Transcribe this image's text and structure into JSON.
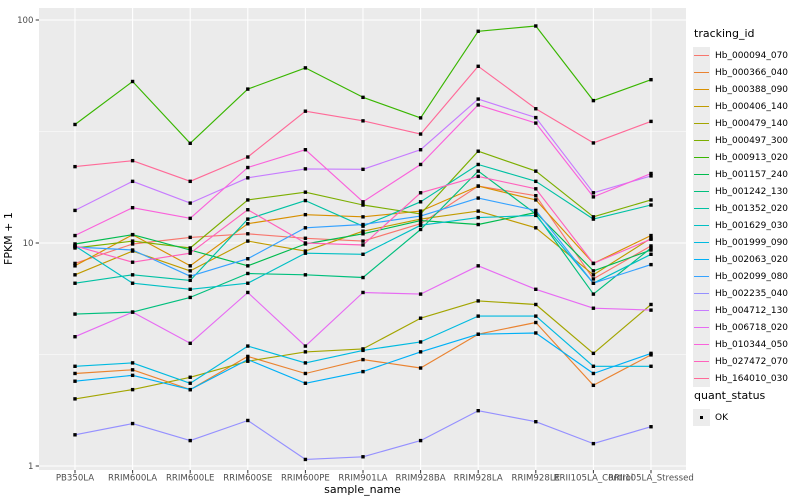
{
  "figure": {
    "background": "#FFFFFF",
    "panel_background": "#EBEBEB",
    "gridline_color": "#FFFFFF",
    "tick_color": "#333333",
    "tick_label_color": "#4D4D4D",
    "point_color": "#000000"
  },
  "legend": {
    "tracking_title": "tracking_id",
    "quant_title": "quant_status",
    "quant_items": [
      {
        "label": "OK",
        "symbol": "filled-square"
      }
    ]
  },
  "chart_data": {
    "type": "line",
    "x_label": "sample_name",
    "y_label": "FPKM + 1",
    "y_scale": "log10",
    "y_ticks": [
      1,
      10,
      100
    ],
    "y_minor_ticks": [
      3.1623,
      31.623
    ],
    "ylim": [
      0.9,
      110
    ],
    "grid": true,
    "legend_position": "right",
    "point_shape": "filled-square",
    "categories": [
      "PB350LA",
      "RRIM600LA",
      "RRIM600LE",
      "RRIM600SE",
      "RRIM600PE",
      "RRIM901LA",
      "RRIM928BA",
      "RRIM928LA",
      "RRIM928LE",
      "RRII105LA_Control",
      "RRII105LA_Stressed"
    ],
    "series": [
      {
        "name": "Hb_000094_070",
        "color": "#F8766D",
        "values": [
          8.1,
          9.9,
          10.6,
          11.0,
          10.5,
          10.2,
          12.2,
          18.0,
          16.3,
          6.9,
          9.7
        ]
      },
      {
        "name": "Hb_000366_040",
        "color": "#EA8331",
        "values": [
          2.6,
          2.7,
          2.2,
          3.1,
          2.6,
          3.0,
          2.75,
          3.9,
          4.4,
          2.3,
          3.15
        ]
      },
      {
        "name": "Hb_000388_090",
        "color": "#D89000",
        "values": [
          7.9,
          10.9,
          7.9,
          12.2,
          13.4,
          13.1,
          13.9,
          18.0,
          15.6,
          8.1,
          10.8
        ]
      },
      {
        "name": "Hb_000406_140",
        "color": "#C09B00",
        "values": [
          7.2,
          9.2,
          7.5,
          10.2,
          9.2,
          11.3,
          12.8,
          13.9,
          11.7,
          7.2,
          10.5
        ]
      },
      {
        "name": "Hb_000479_140",
        "color": "#A3A500",
        "values": [
          2.0,
          2.2,
          2.5,
          2.95,
          3.25,
          3.35,
          4.6,
          5.5,
          5.3,
          3.2,
          5.3
        ]
      },
      {
        "name": "Hb_000497_300",
        "color": "#7CAE00",
        "values": [
          9.5,
          10.2,
          9.5,
          15.6,
          16.9,
          14.8,
          13.5,
          25.8,
          21.0,
          13.1,
          15.6
        ]
      },
      {
        "name": "Hb_000913_020",
        "color": "#39B600",
        "values": [
          34.0,
          53.0,
          28.0,
          49.0,
          61.0,
          45.0,
          36.4,
          89.0,
          94.0,
          43.5,
          54.0
        ]
      },
      {
        "name": "Hb_001157_240",
        "color": "#00BB4E",
        "values": [
          9.9,
          10.9,
          9.3,
          7.9,
          9.9,
          11.0,
          12.6,
          12.1,
          13.7,
          7.5,
          9.3
        ]
      },
      {
        "name": "Hb_001242_130",
        "color": "#00BF7D",
        "values": [
          4.8,
          4.9,
          5.7,
          7.3,
          7.2,
          7.0,
          11.5,
          21.0,
          13.5,
          5.9,
          9.5
        ]
      },
      {
        "name": "Hb_001352_020",
        "color": "#00C1A3",
        "values": [
          6.6,
          7.2,
          6.8,
          12.8,
          15.5,
          11.9,
          15.3,
          22.5,
          18.9,
          12.8,
          14.8
        ]
      },
      {
        "name": "Hb_001629_030",
        "color": "#00BFC4",
        "values": [
          9.7,
          6.6,
          6.2,
          6.6,
          9.0,
          8.9,
          12.0,
          13.0,
          13.3,
          6.6,
          8.9
        ]
      },
      {
        "name": "Hb_001999_090",
        "color": "#00BAE0",
        "values": [
          2.8,
          2.9,
          2.35,
          3.45,
          2.9,
          3.3,
          3.6,
          4.7,
          4.7,
          2.8,
          2.8
        ]
      },
      {
        "name": "Hb_002063_020",
        "color": "#00B0F6",
        "values": [
          2.4,
          2.55,
          2.2,
          3.0,
          2.35,
          2.65,
          3.25,
          3.9,
          3.95,
          2.6,
          3.2
        ]
      },
      {
        "name": "Hb_002099_080",
        "color": "#35A2FF",
        "values": [
          9.6,
          9.3,
          7.1,
          8.5,
          11.7,
          12.1,
          13.2,
          15.9,
          14.0,
          6.6,
          8.0
        ]
      },
      {
        "name": "Hb_002235_040",
        "color": "#9590FF",
        "values": [
          1.38,
          1.55,
          1.3,
          1.6,
          1.07,
          1.1,
          1.3,
          1.77,
          1.58,
          1.26,
          1.5
        ]
      },
      {
        "name": "Hb_004712_130",
        "color": "#C77CFF",
        "values": [
          14.0,
          18.9,
          15.1,
          19.6,
          21.5,
          21.4,
          26.2,
          44.2,
          36.5,
          16.8,
          20.0
        ]
      },
      {
        "name": "Hb_006718_020",
        "color": "#E76BF3",
        "values": [
          3.8,
          4.9,
          3.55,
          6.0,
          3.45,
          6.0,
          5.9,
          7.9,
          6.2,
          5.1,
          5.0
        ]
      },
      {
        "name": "Hb_010344_050",
        "color": "#FA62DB",
        "values": [
          10.8,
          14.4,
          12.9,
          21.8,
          26.2,
          15.3,
          22.5,
          41.6,
          34.5,
          16.1,
          20.5
        ]
      },
      {
        "name": "Hb_027472_070",
        "color": "#FF62BC",
        "values": [
          9.7,
          8.2,
          9.0,
          14.1,
          10.0,
          9.8,
          16.8,
          19.9,
          17.5,
          8.1,
          10.4
        ]
      },
      {
        "name": "Hb_164010_030",
        "color": "#FF6A98",
        "values": [
          22.0,
          23.4,
          18.9,
          24.3,
          39.0,
          35.3,
          30.8,
          62.0,
          40.0,
          28.1,
          35.1
        ]
      }
    ]
  }
}
